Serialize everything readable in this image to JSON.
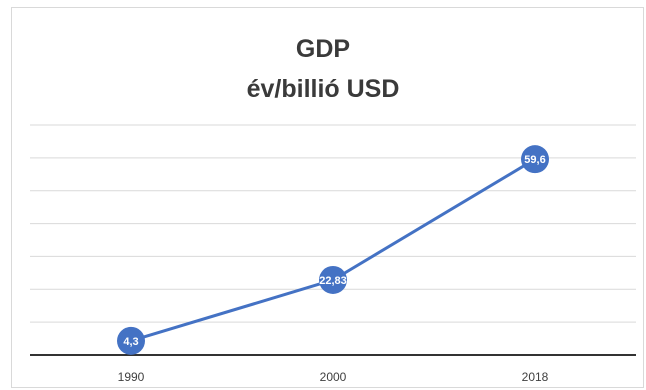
{
  "chart_data": {
    "type": "line",
    "title_lines": [
      "GDP",
      "év/billió USD"
    ],
    "categories": [
      "1990",
      "2000",
      "2018"
    ],
    "series": [
      {
        "values": [
          4.3,
          22.83,
          59.6
        ],
        "labels": [
          "4,3",
          "22,83",
          "59,6"
        ],
        "color": "#4472c4"
      }
    ],
    "ylim": [
      0,
      70
    ],
    "grid": true,
    "xlabel": "",
    "ylabel": ""
  }
}
